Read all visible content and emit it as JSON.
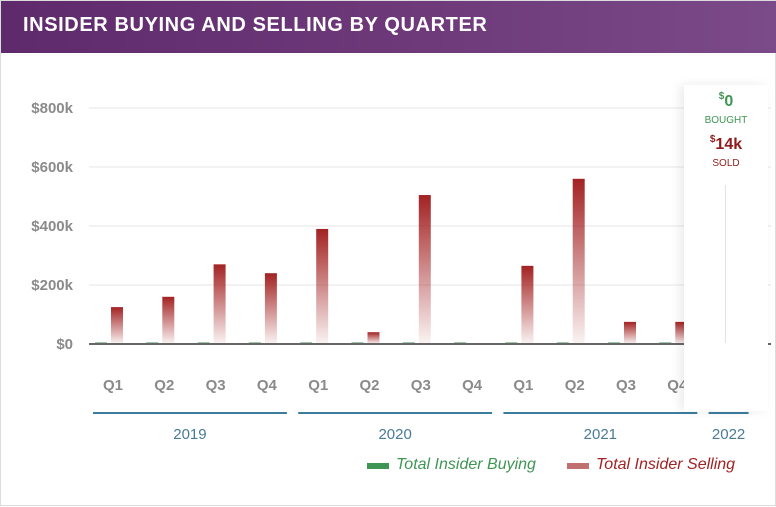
{
  "widget": {
    "title": "INSIDER BUYING AND SELLING BY QUARTER"
  },
  "highlight": {
    "bought_symbol": "$",
    "bought_value": "0",
    "bought_label": "BOUGHT",
    "sold_symbol": "$",
    "sold_value": "14k",
    "sold_label": "SOLD"
  },
  "colors": {
    "buying": "#3f9554",
    "selling": "#a32222",
    "selling_legend": "#c07070",
    "year_line": "#3c7c9c",
    "header": "#6a3577"
  },
  "chart_data": {
    "type": "bar",
    "title": "INSIDER BUYING AND SELLING BY QUARTER",
    "xlabel": "",
    "ylabel": "",
    "ylim": [
      0,
      800000
    ],
    "yticks": [
      0,
      200000,
      400000,
      600000,
      800000
    ],
    "ytick_labels": [
      "$0",
      "$200k",
      "$400k",
      "$600k",
      "$800k"
    ],
    "grid": true,
    "legend_position": "bottom-right",
    "categories": [
      "Q1",
      "Q2",
      "Q3",
      "Q4",
      "Q1",
      "Q2",
      "Q3",
      "Q4",
      "Q1",
      "Q2",
      "Q3",
      "Q4",
      "Q1"
    ],
    "years": [
      {
        "label": "2019",
        "start": 0,
        "end": 3
      },
      {
        "label": "2020",
        "start": 4,
        "end": 7
      },
      {
        "label": "2021",
        "start": 8,
        "end": 11
      },
      {
        "label": "2022",
        "start": 12,
        "end": 12
      }
    ],
    "series": [
      {
        "name": "Total Insider Buying",
        "values": [
          0,
          0,
          0,
          0,
          0,
          5000,
          0,
          0,
          0,
          0,
          0,
          0,
          0
        ]
      },
      {
        "name": "Total Insider Selling",
        "values": [
          125000,
          160000,
          270000,
          240000,
          390000,
          40000,
          505000,
          3000,
          265000,
          560000,
          75000,
          75000,
          14000
        ]
      }
    ]
  }
}
